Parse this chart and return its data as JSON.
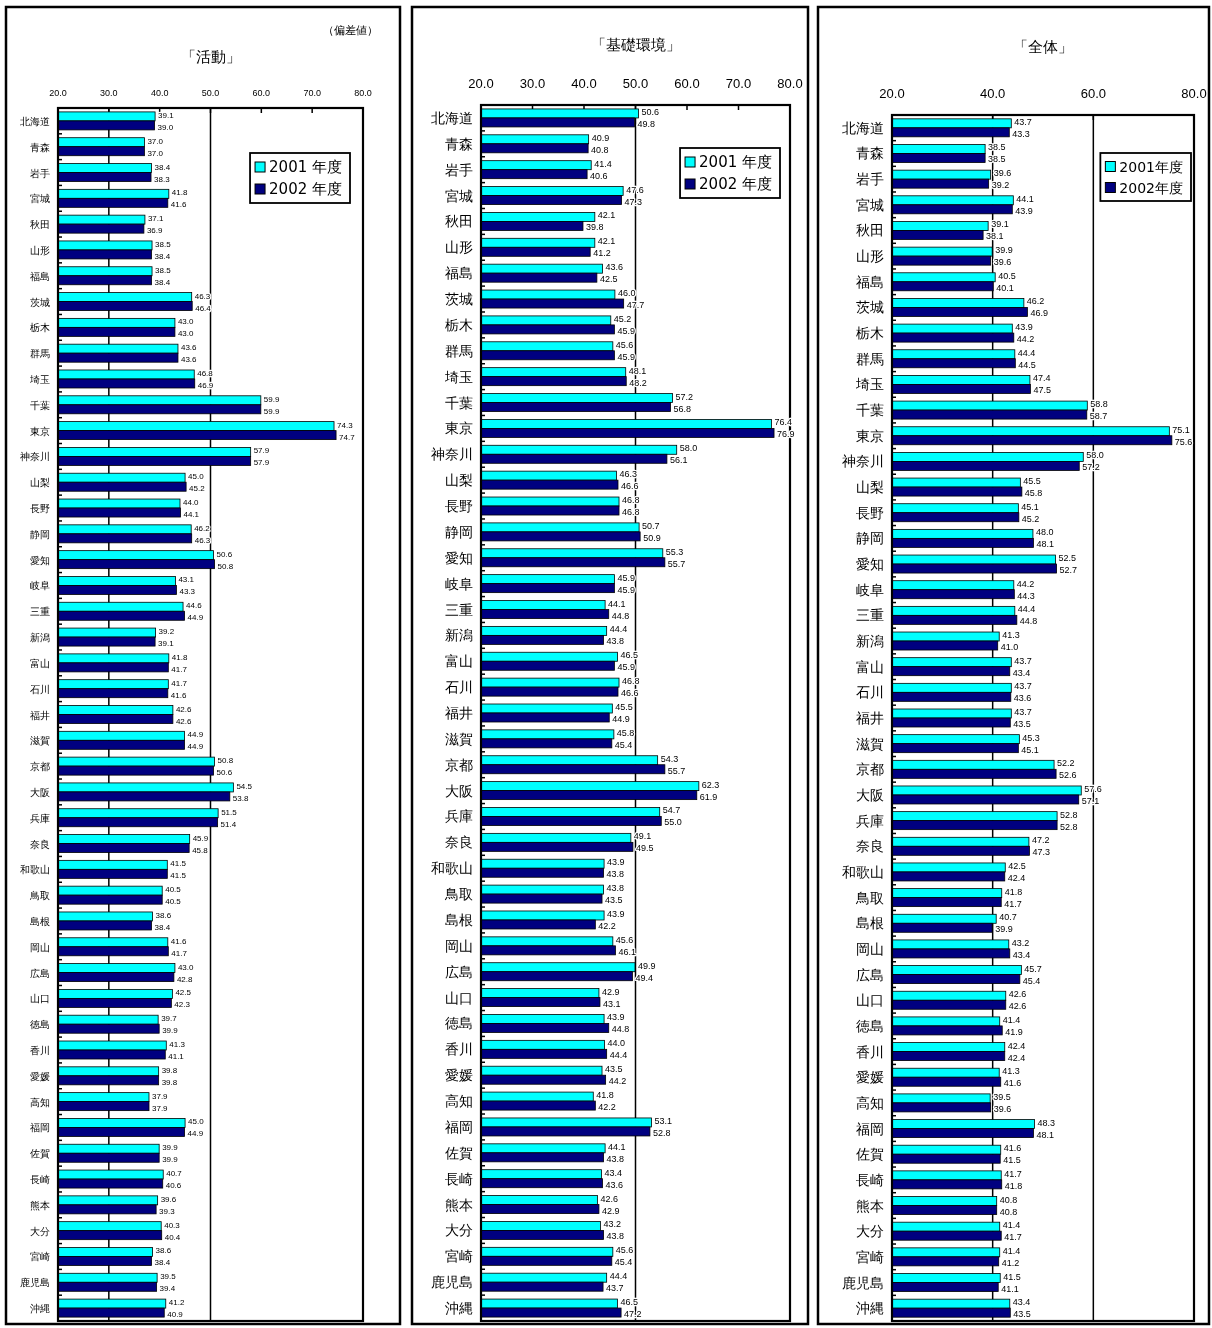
{
  "chart_data": [
    {
      "type": "bar",
      "orientation": "horizontal",
      "title": "「活動」",
      "annotations": [
        "（偏差値）"
      ],
      "categories": [
        "北海道",
        "青森",
        "岩手",
        "宮城",
        "秋田",
        "山形",
        "福島",
        "茨城",
        "栃木",
        "群馬",
        "埼玉",
        "千葉",
        "東京",
        "神奈川",
        "山梨",
        "長野",
        "静岡",
        "愛知",
        "岐阜",
        "三重",
        "新潟",
        "富山",
        "石川",
        "福井",
        "滋賀",
        "京都",
        "大阪",
        "兵庫",
        "奈良",
        "和歌山",
        "鳥取",
        "島根",
        "岡山",
        "広島",
        "山口",
        "徳島",
        "香川",
        "愛媛",
        "高知",
        "福岡",
        "佐賀",
        "長崎",
        "熊本",
        "大分",
        "宮崎",
        "鹿児島",
        "沖縄"
      ],
      "series": [
        {
          "name": "2001 年度",
          "color": "#00ffff",
          "values": [
            39.1,
            37.0,
            38.4,
            41.8,
            37.1,
            38.5,
            38.5,
            46.3,
            43.0,
            43.6,
            46.8,
            59.9,
            74.3,
            57.9,
            45.0,
            44.0,
            46.2,
            50.6,
            43.1,
            44.6,
            39.2,
            41.8,
            41.7,
            42.6,
            44.9,
            50.8,
            54.5,
            51.5,
            45.9,
            41.5,
            40.5,
            38.6,
            41.6,
            43.0,
            42.5,
            39.7,
            41.3,
            39.8,
            37.9,
            45.0,
            39.9,
            40.7,
            39.6,
            40.3,
            38.6,
            39.5,
            41.2
          ],
          "value_labels": [
            "39.1",
            "37.0",
            "38.4",
            "41.8",
            "37.1",
            "38.5",
            "38.5",
            "46.3",
            "43.0",
            "43.6",
            "46.8",
            "59.9",
            "74.3",
            "57.9",
            "45.0",
            "44.0",
            "46.2",
            "50.6",
            "43.1",
            "44.6",
            "39.2",
            "41.8",
            "41.7",
            "42.6",
            "44.9",
            "50.8",
            "54.5",
            "51.5",
            "45.9",
            "41.5",
            "40.5",
            "38.6",
            "41.6",
            "43.0",
            "42.5",
            "39.7",
            "41.3",
            "39.8",
            "37.9",
            "45.0",
            "39.9",
            "40.7",
            "39.6",
            "40.3",
            "38.6",
            "39.5",
            "41.2"
          ]
        },
        {
          "name": "2002 年度",
          "color": "#000080",
          "values": [
            39.0,
            37.0,
            38.3,
            41.6,
            36.9,
            38.4,
            38.4,
            46.4,
            43.0,
            43.6,
            46.9,
            59.9,
            74.7,
            57.9,
            45.2,
            44.1,
            46.3,
            50.8,
            43.3,
            44.9,
            39.1,
            41.7,
            41.6,
            42.6,
            44.9,
            50.6,
            53.8,
            51.4,
            45.8,
            41.5,
            40.5,
            38.4,
            41.7,
            42.8,
            42.3,
            39.9,
            41.1,
            39.8,
            37.9,
            44.9,
            39.9,
            40.6,
            39.3,
            40.4,
            38.4,
            39.4,
            40.9
          ],
          "value_labels": [
            "39.0",
            "37.0",
            "38.3",
            "41.6",
            "36.9",
            "38.4",
            "38.4",
            "46.4",
            "43.0",
            "43.6",
            "46.9",
            "59.9",
            "74.7",
            "57.9",
            "45.2",
            "44.1",
            "46.3",
            "50.8",
            "43.3",
            "44.9",
            "39.1",
            "41.7",
            "41.6",
            "42.6",
            "44.9",
            "50.6",
            "53.8",
            "51.4",
            "45.8",
            "41.5",
            "40.5",
            "38.4",
            "41.7",
            "42.8",
            "42.3",
            "39.9",
            "41.1",
            "39.8",
            "37.9",
            "44.9",
            "39.9",
            "40.6",
            "39.3",
            "40.4",
            "38.4",
            "39.4",
            "40.9"
          ]
        }
      ],
      "xlim": [
        20,
        80
      ],
      "xticks": [
        {
          "value": 20,
          "label": "20.0"
        },
        {
          "value": 30,
          "label": "30.0"
        },
        {
          "value": 40,
          "label": "40.0"
        },
        {
          "value": 50,
          "label": "50.0"
        },
        {
          "value": 60,
          "label": "60.0"
        },
        {
          "value": 70,
          "label": "70.0"
        },
        {
          "value": 80,
          "label": "80.0"
        }
      ],
      "ref_lines": [
        {
          "axis": "x",
          "value": 30,
          "color": "#000000"
        },
        {
          "axis": "x",
          "value": 50,
          "color": "#000000"
        }
      ],
      "legend": "top right"
    },
    {
      "type": "bar",
      "orientation": "horizontal",
      "title": "「基礎環境」",
      "categories": [
        "北海道",
        "青森",
        "岩手",
        "宮城",
        "秋田",
        "山形",
        "福島",
        "茨城",
        "栃木",
        "群馬",
        "埼玉",
        "千葉",
        "東京",
        "神奈川",
        "山梨",
        "長野",
        "静岡",
        "愛知",
        "岐阜",
        "三重",
        "新潟",
        "富山",
        "石川",
        "福井",
        "滋賀",
        "京都",
        "大阪",
        "兵庫",
        "奈良",
        "和歌山",
        "鳥取",
        "島根",
        "岡山",
        "広島",
        "山口",
        "徳島",
        "香川",
        "愛媛",
        "高知",
        "福岡",
        "佐賀",
        "長崎",
        "熊本",
        "大分",
        "宮崎",
        "鹿児島",
        "沖縄"
      ],
      "series": [
        {
          "name": "2001 年度",
          "color": "#00ffff",
          "values": [
            50.6,
            40.9,
            41.4,
            47.6,
            42.1,
            42.1,
            43.6,
            46.0,
            45.2,
            45.6,
            48.1,
            57.2,
            76.4,
            58.0,
            46.3,
            46.8,
            50.7,
            55.3,
            45.9,
            44.1,
            44.4,
            46.5,
            46.8,
            45.5,
            45.8,
            54.3,
            62.3,
            54.7,
            49.1,
            43.9,
            43.8,
            43.9,
            45.6,
            49.9,
            42.9,
            43.9,
            44.0,
            43.5,
            41.8,
            53.1,
            44.1,
            43.4,
            42.6,
            43.2,
            45.6,
            44.4,
            46.5
          ],
          "value_labels": [
            "50.6",
            "40.9",
            "41.4",
            "47.6",
            "42.1",
            "42.1",
            "43.6",
            "46.0",
            "45.2",
            "45.6",
            "48.1",
            "57.2",
            "76.4",
            "58.0",
            "46.3",
            "46.8",
            "50.7",
            "55.3",
            "45.9",
            "44.1",
            "44.4",
            "46.5",
            "46.8",
            "45.5",
            "45.8",
            "54.3",
            "62.3",
            "54.7",
            "49.1",
            "43.9",
            "43.8",
            "43.9",
            "45.6",
            "49.9",
            "42.9",
            "43.9",
            "44.0",
            "43.5",
            "41.8",
            "53.1",
            "44.1",
            "43.4",
            "42.6",
            "43.2",
            "45.6",
            "44.4",
            "46.5"
          ]
        },
        {
          "name": "2002 年度",
          "color": "#000080",
          "values": [
            49.8,
            40.8,
            40.6,
            47.3,
            39.8,
            41.2,
            42.5,
            47.7,
            45.9,
            45.9,
            48.2,
            56.8,
            76.9,
            56.1,
            46.6,
            46.8,
            50.9,
            55.7,
            45.9,
            44.8,
            43.8,
            45.9,
            46.6,
            44.9,
            45.4,
            55.7,
            61.9,
            55.0,
            49.5,
            43.8,
            43.5,
            42.2,
            46.1,
            49.4,
            43.1,
            44.8,
            44.4,
            44.2,
            42.2,
            52.8,
            43.8,
            43.6,
            42.9,
            43.8,
            45.4,
            43.7,
            47.2
          ],
          "value_labels": [
            "49.8",
            "40.8",
            "40.6",
            "47.3",
            "39.8",
            "41.2",
            "42.5",
            "47.7",
            "45.9",
            "45.9",
            "48.2",
            "56.8",
            "76.9",
            "56.1",
            "46.6",
            "46.8",
            "50.9",
            "55.7",
            "45.9",
            "44.8",
            "43.8",
            "45.9",
            "46.6",
            "44.9",
            "45.4",
            "55.7",
            "61.9",
            "55.0",
            "49.5",
            "43.8",
            "43.5",
            "42.2",
            "46.1",
            "49.4",
            "43.1",
            "44.8",
            "44.4",
            "44.2",
            "42.2",
            "52.8",
            "43.8",
            "43.6",
            "42.9",
            "43.8",
            "45.4",
            "43.7",
            "47.2"
          ]
        }
      ],
      "xlim": [
        20,
        80
      ],
      "xticks": [
        {
          "value": 20,
          "label": "20.0"
        },
        {
          "value": 30,
          "label": "30.0"
        },
        {
          "value": 40,
          "label": "40.0"
        },
        {
          "value": 50,
          "label": "50.0"
        },
        {
          "value": 60,
          "label": "60.0"
        },
        {
          "value": 70,
          "label": "70.0"
        },
        {
          "value": 80,
          "label": "80.0"
        }
      ],
      "ref_lines": [
        {
          "axis": "x",
          "value": 50,
          "color": "#000000"
        }
      ],
      "legend": "top right"
    },
    {
      "type": "bar",
      "orientation": "horizontal",
      "title": "「全体」",
      "categories": [
        "北海道",
        "青森",
        "岩手",
        "宮城",
        "秋田",
        "山形",
        "福島",
        "茨城",
        "栃木",
        "群馬",
        "埼玉",
        "千葉",
        "東京",
        "神奈川",
        "山梨",
        "長野",
        "静岡",
        "愛知",
        "岐阜",
        "三重",
        "新潟",
        "富山",
        "石川",
        "福井",
        "滋賀",
        "京都",
        "大阪",
        "兵庫",
        "奈良",
        "和歌山",
        "鳥取",
        "島根",
        "岡山",
        "広島",
        "山口",
        "徳島",
        "香川",
        "愛媛",
        "高知",
        "福岡",
        "佐賀",
        "長崎",
        "熊本",
        "大分",
        "宮崎",
        "鹿児島",
        "沖縄"
      ],
      "series": [
        {
          "name": "2001年度",
          "color": "#00ffff",
          "values": [
            43.7,
            38.5,
            39.6,
            44.1,
            39.1,
            39.9,
            40.5,
            46.2,
            43.9,
            44.4,
            47.4,
            58.8,
            75.1,
            58.0,
            45.5,
            45.1,
            48.0,
            52.5,
            44.2,
            44.4,
            41.3,
            43.7,
            43.7,
            43.7,
            45.3,
            52.2,
            57.6,
            52.8,
            47.2,
            42.5,
            41.8,
            40.7,
            43.2,
            45.7,
            42.6,
            41.4,
            42.4,
            41.3,
            39.5,
            48.3,
            41.6,
            41.7,
            40.8,
            41.4,
            41.4,
            41.5,
            43.4
          ],
          "value_labels": [
            "43.7",
            "38.5",
            "39.6",
            "44.1",
            "39.1",
            "39.9",
            "40.5",
            "46.2",
            "43.9",
            "44.4",
            "47.4",
            "58.8",
            "75.1",
            "58.0",
            "45.5",
            "45.1",
            "48.0",
            "52.5",
            "44.2",
            "44.4",
            "41.3",
            "43.7",
            "43.7",
            "43.7",
            "45.3",
            "52.2",
            "57.6",
            "52.8",
            "47.2",
            "42.5",
            "41.8",
            "40.7",
            "43.2",
            "45.7",
            "42.6",
            "41.4",
            "42.4",
            "41.3",
            "39.5",
            "48.3",
            "41.6",
            "41.7",
            "40.8",
            "41.4",
            "41.4",
            "41.5",
            "43.4"
          ]
        },
        {
          "name": "2002年度",
          "color": "#000080",
          "values": [
            43.3,
            38.5,
            39.2,
            43.9,
            38.1,
            39.6,
            40.1,
            46.9,
            44.2,
            44.5,
            47.5,
            58.7,
            75.6,
            57.2,
            45.8,
            45.2,
            48.1,
            52.7,
            44.3,
            44.8,
            41.0,
            43.4,
            43.6,
            43.5,
            45.1,
            52.6,
            57.1,
            52.8,
            47.3,
            42.4,
            41.7,
            39.9,
            43.4,
            45.4,
            42.6,
            41.9,
            42.4,
            41.6,
            39.6,
            48.1,
            41.5,
            41.8,
            40.8,
            41.7,
            41.2,
            41.1,
            43.5
          ],
          "value_labels": [
            "43.3",
            "38.5",
            "39.2",
            "43.9",
            "38.1",
            "39.6",
            "40.1",
            "46.9",
            "44.2",
            "44.5",
            "47.5",
            "58.7",
            "75.6",
            "57.2",
            "45.8",
            "45.2",
            "48.1",
            "52.7",
            "44.3",
            "44.8",
            "41.0",
            "43.4",
            "43.6",
            "43.5",
            "45.1",
            "52.6",
            "57.1",
            "52.8",
            "47.3",
            "42.4",
            "41.7",
            "39.9",
            "43.4",
            "45.4",
            "42.6",
            "41.9",
            "42.4",
            "41.6",
            "39.6",
            "48.1",
            "41.5",
            "41.8",
            "40.8",
            "41.7",
            "41.2",
            "41.1",
            "43.5"
          ]
        }
      ],
      "xlim": [
        20,
        80
      ],
      "xticks": [
        {
          "value": 20,
          "label": "20.0"
        },
        {
          "value": 40,
          "label": "40.0"
        },
        {
          "value": 60,
          "label": "60.0"
        },
        {
          "value": 80,
          "label": "80.0"
        }
      ],
      "ref_lines": [
        {
          "axis": "x",
          "value": 40,
          "color": "#000000"
        },
        {
          "axis": "x",
          "value": 60,
          "color": "#000000"
        }
      ],
      "legend": "top right"
    }
  ]
}
